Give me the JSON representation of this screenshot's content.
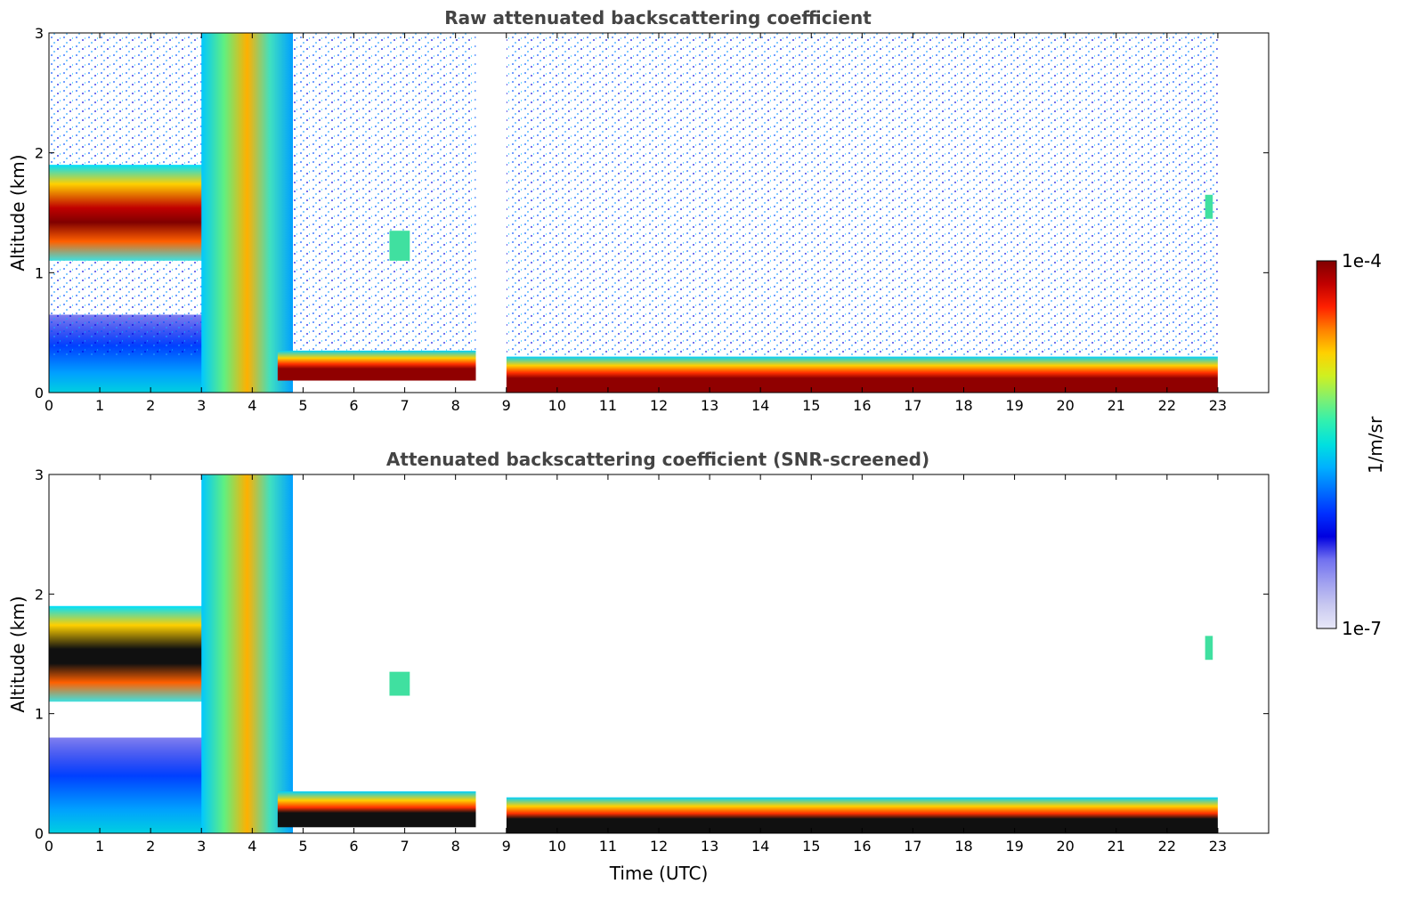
{
  "colormap": {
    "colors": [
      "#e8e8f8",
      "#c8c8f0",
      "#a0a0f0",
      "#7070f0",
      "#0000e0",
      "#0030ff",
      "#0070ff",
      "#00b0ff",
      "#00e0e0",
      "#30f0b0",
      "#80f070",
      "#d0f020",
      "#ffd000",
      "#ff8000",
      "#ff2000",
      "#c00000",
      "#800000"
    ]
  },
  "chart_data": [
    {
      "type": "heatmap",
      "title": "Raw attenuated backscattering coefficient",
      "xlabel": "",
      "ylabel": "Altitude (km)",
      "xlim": [
        0,
        24
      ],
      "ylim": [
        0,
        3
      ],
      "x_ticks": [
        "0",
        "1",
        "2",
        "3",
        "4",
        "5",
        "6",
        "7",
        "8",
        "9",
        "10",
        "11",
        "12",
        "13",
        "14",
        "15",
        "16",
        "17",
        "18",
        "19",
        "20",
        "21",
        "22",
        "23"
      ],
      "y_ticks": [
        "0",
        "1",
        "2",
        "3"
      ],
      "data_gap_utc": [
        8.4,
        9.0
      ],
      "data_end_utc": 23.0,
      "features": [
        {
          "kind": "cloud",
          "t_start": 0.0,
          "t_end": 3.1,
          "alt_km": [
            1.1,
            1.9
          ],
          "level": "high"
        },
        {
          "kind": "dense_plume",
          "t_start": 3.0,
          "t_end": 4.8,
          "alt_km": [
            0.0,
            3.0
          ],
          "level": "high"
        },
        {
          "kind": "boundary_layer",
          "t_start": 4.5,
          "t_end": 8.4,
          "alt_km": [
            0.1,
            0.35
          ],
          "level": "max"
        },
        {
          "kind": "boundary_layer",
          "t_start": 9.0,
          "t_end": 23.0,
          "alt_km": [
            0.0,
            0.3
          ],
          "level": "max"
        },
        {
          "kind": "small_cloud",
          "t_start": 6.7,
          "t_end": 7.1,
          "alt_km": [
            1.1,
            1.35
          ],
          "level": "mid"
        },
        {
          "kind": "small_cloud",
          "t_start": 22.75,
          "t_end": 22.9,
          "alt_km": [
            1.45,
            1.65
          ],
          "level": "mid"
        }
      ]
    },
    {
      "type": "heatmap",
      "title": "Attenuated backscattering coefficient (SNR-screened)",
      "xlabel": "Time (UTC)",
      "ylabel": "Altitude (km)",
      "xlim": [
        0,
        24
      ],
      "ylim": [
        0,
        3
      ],
      "x_ticks": [
        "0",
        "1",
        "2",
        "3",
        "4",
        "5",
        "6",
        "7",
        "8",
        "9",
        "10",
        "11",
        "12",
        "13",
        "14",
        "15",
        "16",
        "17",
        "18",
        "19",
        "20",
        "21",
        "22",
        "23"
      ],
      "y_ticks": [
        "0",
        "1",
        "2",
        "3"
      ],
      "data_gap_utc": [
        8.4,
        9.0
      ],
      "data_end_utc": 23.0,
      "features": [
        {
          "kind": "cloud",
          "t_start": 0.0,
          "t_end": 3.1,
          "alt_km": [
            1.1,
            1.9
          ],
          "level": "saturated"
        },
        {
          "kind": "dense_plume",
          "t_start": 3.0,
          "t_end": 4.8,
          "alt_km": [
            0.0,
            3.0
          ],
          "level": "high"
        },
        {
          "kind": "boundary_layer",
          "t_start": 4.5,
          "t_end": 8.4,
          "alt_km": [
            0.05,
            0.35
          ],
          "level": "saturated"
        },
        {
          "kind": "boundary_layer",
          "t_start": 9.0,
          "t_end": 23.0,
          "alt_km": [
            0.0,
            0.3
          ],
          "level": "saturated"
        },
        {
          "kind": "small_cloud",
          "t_start": 6.7,
          "t_end": 7.1,
          "alt_km": [
            1.15,
            1.35
          ],
          "level": "mid"
        },
        {
          "kind": "small_cloud",
          "t_start": 22.75,
          "t_end": 22.9,
          "alt_km": [
            1.45,
            1.65
          ],
          "level": "mid"
        }
      ]
    }
  ],
  "colorbar": {
    "label": "1/m/sr",
    "max_label": "1e-4",
    "min_label": "1e-7",
    "scale": "log",
    "range": [
      1e-07,
      0.0001
    ]
  }
}
